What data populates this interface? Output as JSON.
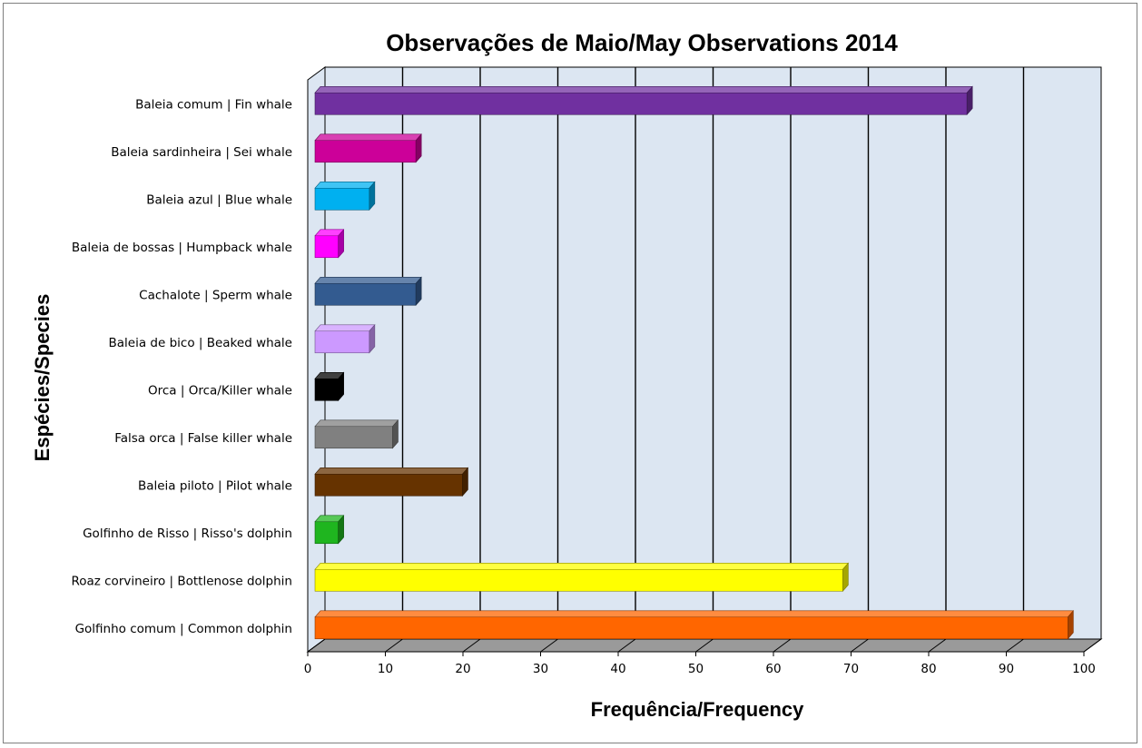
{
  "chart_data": {
    "type": "bar",
    "orientation": "horizontal",
    "style": "3d",
    "title": "Observações de Maio/May Observations 2014",
    "xlabel": "Frequência/Frequency",
    "ylabel": "Espécies/Species",
    "xlim": [
      0,
      100
    ],
    "xticks": [
      0,
      10,
      20,
      30,
      40,
      50,
      60,
      70,
      80,
      90,
      100
    ],
    "grid": true,
    "legend": "none",
    "categories": [
      "Baleia comum | Fin whale",
      "Baleia sardinheira | Sei whale",
      "Baleia azul | Blue whale",
      "Baleia de bossas | Humpback whale",
      "Cachalote | Sperm whale",
      "Baleia de bico | Beaked whale",
      "Orca | Orca/Killer whale",
      "Falsa orca | False killer whale",
      "Baleia piloto | Pilot whale",
      "Golfinho de Risso | Risso's dolphin",
      "Roaz corvineiro | Bottlenose dolphin",
      "Golfinho comum | Common dolphin"
    ],
    "values": [
      84,
      13,
      7,
      3,
      13,
      7,
      3,
      10,
      19,
      3,
      68,
      97
    ],
    "colors": [
      "#7030a0",
      "#cc0099",
      "#00b0f0",
      "#ff00ff",
      "#335b90",
      "#cc99ff",
      "#000000",
      "#808080",
      "#663300",
      "#1fb51f",
      "#ffff00",
      "#ff6600"
    ]
  }
}
